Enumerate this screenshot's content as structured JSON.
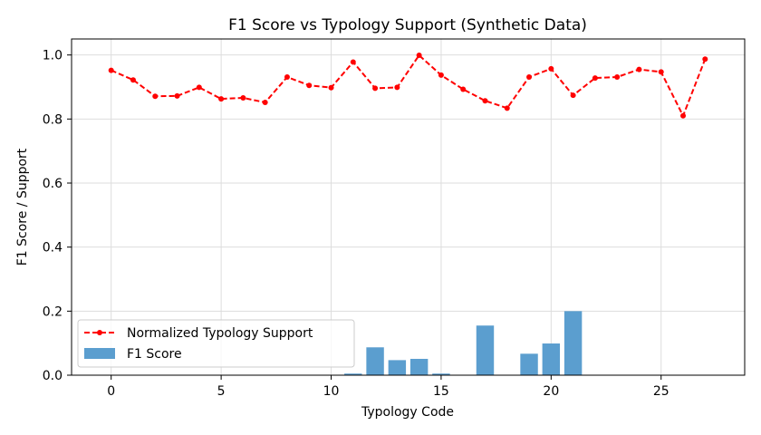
{
  "chart_data": {
    "type": "bar",
    "title": "F1 Score vs Typology Support (Synthetic Data)",
    "xlabel": "Typology Code",
    "ylabel": "F1 Score / Support",
    "xlim": [
      -1.8,
      28.8
    ],
    "ylim": [
      0,
      1.05
    ],
    "xticks": [
      0,
      5,
      10,
      15,
      20,
      25
    ],
    "yticks": [
      0.0,
      0.2,
      0.4,
      0.6,
      0.8,
      1.0
    ],
    "grid": true,
    "legend_position": "lower-left",
    "x": [
      0,
      1,
      2,
      3,
      4,
      5,
      6,
      7,
      8,
      9,
      10,
      11,
      12,
      13,
      14,
      15,
      16,
      17,
      18,
      19,
      20,
      21,
      22,
      23,
      24,
      25,
      26,
      27
    ],
    "series": [
      {
        "name": "Normalized Typology Support",
        "kind": "line",
        "style": "dashed",
        "marker": "circle",
        "color": "#ff0000",
        "values": [
          0.952,
          0.922,
          0.871,
          0.872,
          0.899,
          0.863,
          0.866,
          0.852,
          0.931,
          0.905,
          0.898,
          0.978,
          0.896,
          0.899,
          0.999,
          0.937,
          0.893,
          0.857,
          0.834,
          0.931,
          0.957,
          0.874,
          0.928,
          0.931,
          0.955,
          0.947,
          0.81,
          0.987
        ]
      },
      {
        "name": "F1 Score",
        "kind": "bar",
        "color": "#5b9ecf",
        "values": [
          0,
          0,
          0,
          0,
          0,
          0,
          0,
          0,
          0,
          0,
          0,
          0.005,
          0.087,
          0.047,
          0.051,
          0.005,
          0,
          0.155,
          0,
          0.067,
          0.099,
          0.2,
          0,
          0,
          0,
          0,
          0,
          0
        ]
      }
    ]
  }
}
